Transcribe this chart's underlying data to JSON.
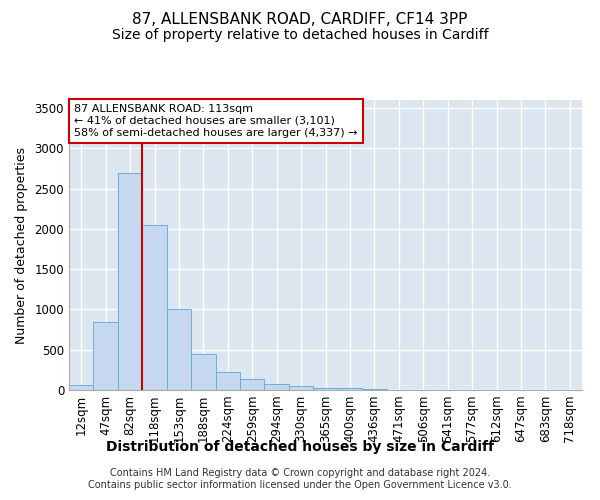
{
  "title": "87, ALLENSBANK ROAD, CARDIFF, CF14 3PP",
  "subtitle": "Size of property relative to detached houses in Cardiff",
  "xlabel": "Distribution of detached houses by size in Cardiff",
  "ylabel": "Number of detached properties",
  "footer_line1": "Contains HM Land Registry data © Crown copyright and database right 2024.",
  "footer_line2": "Contains public sector information licensed under the Open Government Licence v3.0.",
  "categories": [
    "12sqm",
    "47sqm",
    "82sqm",
    "118sqm",
    "153sqm",
    "188sqm",
    "224sqm",
    "259sqm",
    "294sqm",
    "330sqm",
    "365sqm",
    "400sqm",
    "436sqm",
    "471sqm",
    "506sqm",
    "541sqm",
    "577sqm",
    "612sqm",
    "647sqm",
    "683sqm",
    "718sqm"
  ],
  "values": [
    60,
    840,
    2700,
    2050,
    1000,
    450,
    225,
    140,
    70,
    55,
    30,
    25,
    15,
    5,
    2,
    1,
    1,
    0,
    0,
    0,
    0
  ],
  "bar_color": "#c5d8ef",
  "bar_edgecolor": "#6baed6",
  "bar_linewidth": 0.7,
  "vline_color": "#cc0000",
  "vline_x": 2.5,
  "annotation_text": "87 ALLENSBANK ROAD: 113sqm\n← 41% of detached houses are smaller (3,101)\n58% of semi-detached houses are larger (4,337) →",
  "annotation_box_facecolor": "#ffffff",
  "annotation_box_edgecolor": "#cc0000",
  "ylim": [
    0,
    3600
  ],
  "fig_facecolor": "#ffffff",
  "plot_facecolor": "#dce6f0",
  "grid_color": "#ffffff",
  "title_fontsize": 11,
  "subtitle_fontsize": 10,
  "tick_fontsize": 8.5,
  "ylabel_fontsize": 9,
  "xlabel_fontsize": 10,
  "xlabel_fontweight": "bold",
  "footer_fontsize": 7
}
